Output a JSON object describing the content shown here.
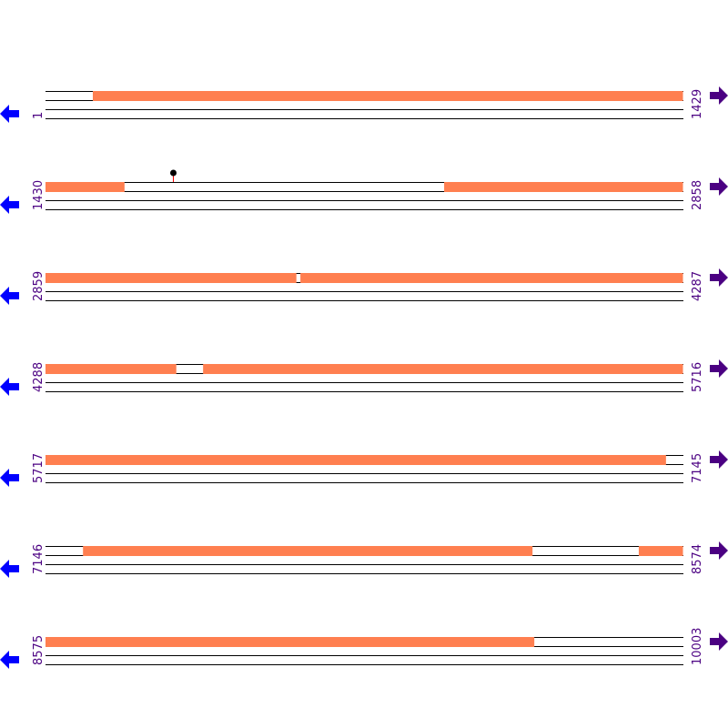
{
  "colors": {
    "feature": "#ff7f50",
    "track_line": "#000000",
    "label": "#4b0082",
    "reverse_arrow": "#0000ff",
    "forward_arrow": "#4b0082",
    "marker_stem": "#ff0000",
    "marker_head": "#000000"
  },
  "icons": {
    "reverse": "arrow-left-icon",
    "forward": "arrow-right-icon"
  },
  "row_span_bp": 1429,
  "rows": [
    {
      "start": "1",
      "end": "1429",
      "start_bp": 1,
      "features": [
        [
          107,
          1429
        ]
      ]
    },
    {
      "start": "1430",
      "end": "2858",
      "start_bp": 1430,
      "features": [
        [
          1430,
          1607
        ],
        [
          2323,
          2858
        ]
      ],
      "markers": [
        1715
      ]
    },
    {
      "start": "2859",
      "end": "4287",
      "start_bp": 2859,
      "features": [
        [
          2859,
          3421
        ],
        [
          3430,
          4287
        ]
      ]
    },
    {
      "start": "4288",
      "end": "5716",
      "start_bp": 4288,
      "features": [
        [
          4288,
          4581
        ],
        [
          4641,
          5716
        ]
      ]
    },
    {
      "start": "5717",
      "end": "7145",
      "start_bp": 5717,
      "features": [
        [
          5717,
          7107
        ]
      ]
    },
    {
      "start": "7146",
      "end": "8574",
      "start_bp": 7146,
      "features": [
        [
          7230,
          8237
        ],
        [
          8475,
          8574
        ]
      ]
    },
    {
      "start": "8575",
      "end": "10003",
      "start_bp": 8575,
      "features": [
        [
          8575,
          9670
        ]
      ]
    }
  ]
}
